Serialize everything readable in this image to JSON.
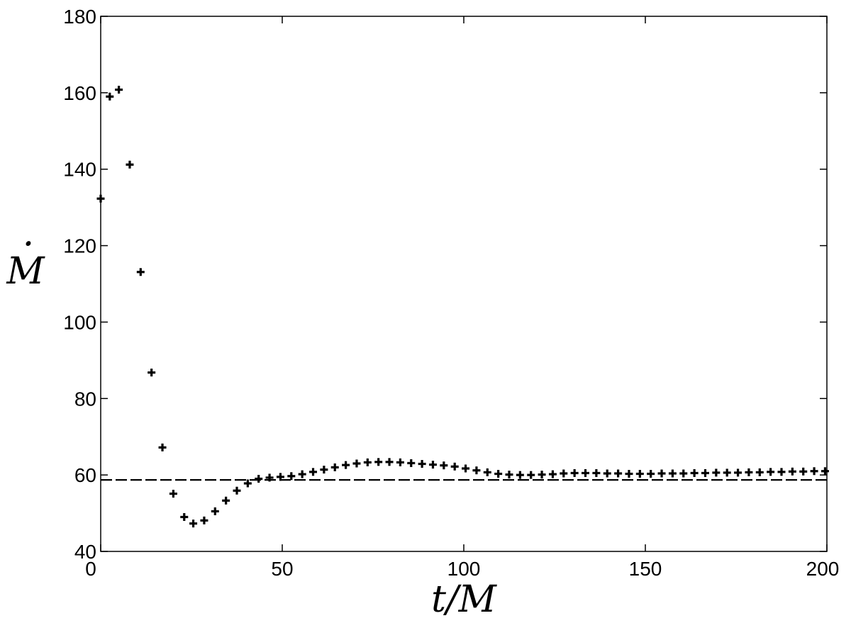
{
  "chart_data": {
    "type": "scatter",
    "title": "",
    "xlabel": "t/M",
    "ylabel": "M",
    "ylabel_accent": "·",
    "xlim": [
      0,
      200
    ],
    "ylim": [
      40,
      180
    ],
    "xticks": [
      0,
      50,
      100,
      150,
      200
    ],
    "yticks": [
      40,
      60,
      80,
      100,
      120,
      140,
      160,
      180
    ],
    "grid": false,
    "legend": "none",
    "reference_line": {
      "style": "dashed",
      "y": 58.7
    },
    "series": [
      {
        "marker": "plus",
        "color": "#000000",
        "x": [
          0,
          2.5,
          5,
          8,
          11,
          14,
          17,
          20,
          23,
          25.5,
          28.5,
          31.5,
          34.5,
          37.5,
          40.5,
          43.5,
          46.5,
          49.5,
          52.5,
          55.5,
          58.5,
          61.5,
          64.5,
          67.5,
          70.5,
          73.5,
          76.5,
          79.5,
          82.5,
          85.5,
          88.5,
          91.5,
          94.5,
          97.5,
          100.5,
          103.5,
          106.5,
          109.5,
          112.5,
          115.5,
          118.5,
          121.5,
          124.5,
          127.5,
          130.5,
          133.5,
          136.5,
          139.5,
          142.5,
          145.5,
          148.5,
          151.5,
          154.5,
          157.5,
          160.5,
          163.5,
          166.5,
          169.5,
          172.5,
          175.5,
          178.5,
          181.5,
          184.5,
          187.5,
          190.5,
          193.5,
          196.5,
          199.5
        ],
        "y": [
          132.3,
          159.0,
          160.8,
          141.2,
          113.1,
          86.8,
          67.2,
          55.1,
          49.0,
          47.3,
          48.1,
          50.5,
          53.3,
          55.9,
          57.8,
          59.0,
          59.3,
          59.5,
          59.7,
          60.2,
          60.8,
          61.4,
          62.0,
          62.6,
          63.0,
          63.3,
          63.4,
          63.4,
          63.3,
          63.1,
          62.9,
          62.7,
          62.5,
          62.2,
          61.7,
          61.2,
          60.7,
          60.3,
          60.1,
          60.0,
          60.0,
          60.1,
          60.2,
          60.4,
          60.5,
          60.5,
          60.5,
          60.4,
          60.4,
          60.3,
          60.3,
          60.3,
          60.4,
          60.4,
          60.4,
          60.5,
          60.5,
          60.6,
          60.6,
          60.6,
          60.7,
          60.7,
          60.8,
          60.8,
          60.9,
          60.9,
          61.0,
          61.0
        ]
      }
    ]
  }
}
